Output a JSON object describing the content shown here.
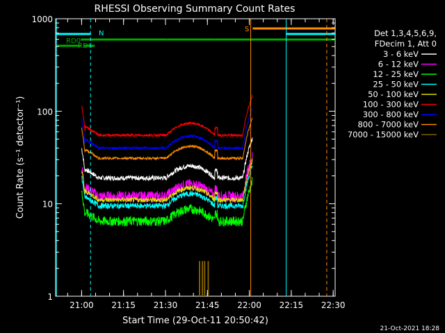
{
  "chart_data": {
    "type": "line",
    "title": "RHESSI Observing Summary Count Rates",
    "xlabel": "Start Time (29-Oct-11 20:50:42)",
    "ylabel": "Count Rate (s⁻¹ detector⁻¹)",
    "yscale": "log",
    "ylim": [
      1,
      1000
    ],
    "xlim_minutes": [
      0,
      100
    ],
    "x_tick_labels": [
      "21:00",
      "21:15",
      "21:30",
      "21:45",
      "22:00",
      "22:15",
      "22:30"
    ],
    "x_tick_minutes": [
      9.3,
      24.3,
      39.3,
      54.3,
      69.3,
      84.3,
      99.3
    ],
    "y_tick_labels": [
      "1",
      "10",
      "100",
      "1000"
    ],
    "y_tick_values": [
      1,
      10,
      100,
      1000
    ],
    "legend_header": [
      "Det 1,3,4,5,6,9,",
      "FDecim 1, Att 0"
    ],
    "legend_placement": "right",
    "series": [
      {
        "name": "3 - 6 keV",
        "color": "#ffffff",
        "level": 19,
        "noise": 0.06
      },
      {
        "name": "6 - 12 keV",
        "color": "#ff00ff",
        "level": 12,
        "noise": 0.14
      },
      {
        "name": "12 - 25 keV",
        "color": "#00ff00",
        "level": 6.5,
        "noise": 0.12
      },
      {
        "name": "25 - 50 keV",
        "color": "#00ffff",
        "level": 9.5,
        "noise": 0.07
      },
      {
        "name": "50 - 100 keV",
        "color": "#e0e000",
        "level": 11,
        "noise": 0.06
      },
      {
        "name": "100 - 300 keV",
        "color": "#ff0000",
        "level": 55,
        "noise": 0.03
      },
      {
        "name": "300 - 800 keV",
        "color": "#0000ff",
        "level": 40,
        "noise": 0.03
      },
      {
        "name": "800 - 7000 keV",
        "color": "#ff8c00",
        "level": 31,
        "noise": 0.03
      },
      {
        "name": "7000 - 15000 keV",
        "color": "#806000",
        "level": 0,
        "noise": 0
      }
    ],
    "data_window_minutes": [
      9.3,
      70.5
    ],
    "flags": [
      {
        "label": "RD0",
        "color": "#00aa00",
        "bars": [
          [
            0,
            9
          ],
          [
            10,
            14
          ]
        ]
      },
      {
        "label": "RD6",
        "color": "#00aa00",
        "bars": [
          [
            9,
            40
          ],
          [
            40,
            57
          ],
          [
            57,
            100
          ]
        ]
      },
      {
        "label": "N",
        "color": "#00ffff",
        "bars": [
          [
            0,
            12.5
          ],
          [
            82.5,
            100
          ]
        ]
      },
      {
        "label": "S",
        "color": "#ff8c00",
        "bars": [
          [
            70.5,
            100
          ]
        ]
      }
    ],
    "vertical_markers": [
      {
        "minute": 0.3,
        "color": "#00ffff",
        "dashed": false
      },
      {
        "minute": 12.5,
        "color": "#00ffff",
        "dashed": true
      },
      {
        "minute": 82.5,
        "color": "#00ffff",
        "dashed": false
      },
      {
        "minute": 97.0,
        "color": "#ff8c00",
        "dashed": true
      },
      {
        "minute": 69.8,
        "color": "#ff8c00",
        "dashed": false
      }
    ],
    "timestamp": "21-Oct-2021 18:28"
  }
}
